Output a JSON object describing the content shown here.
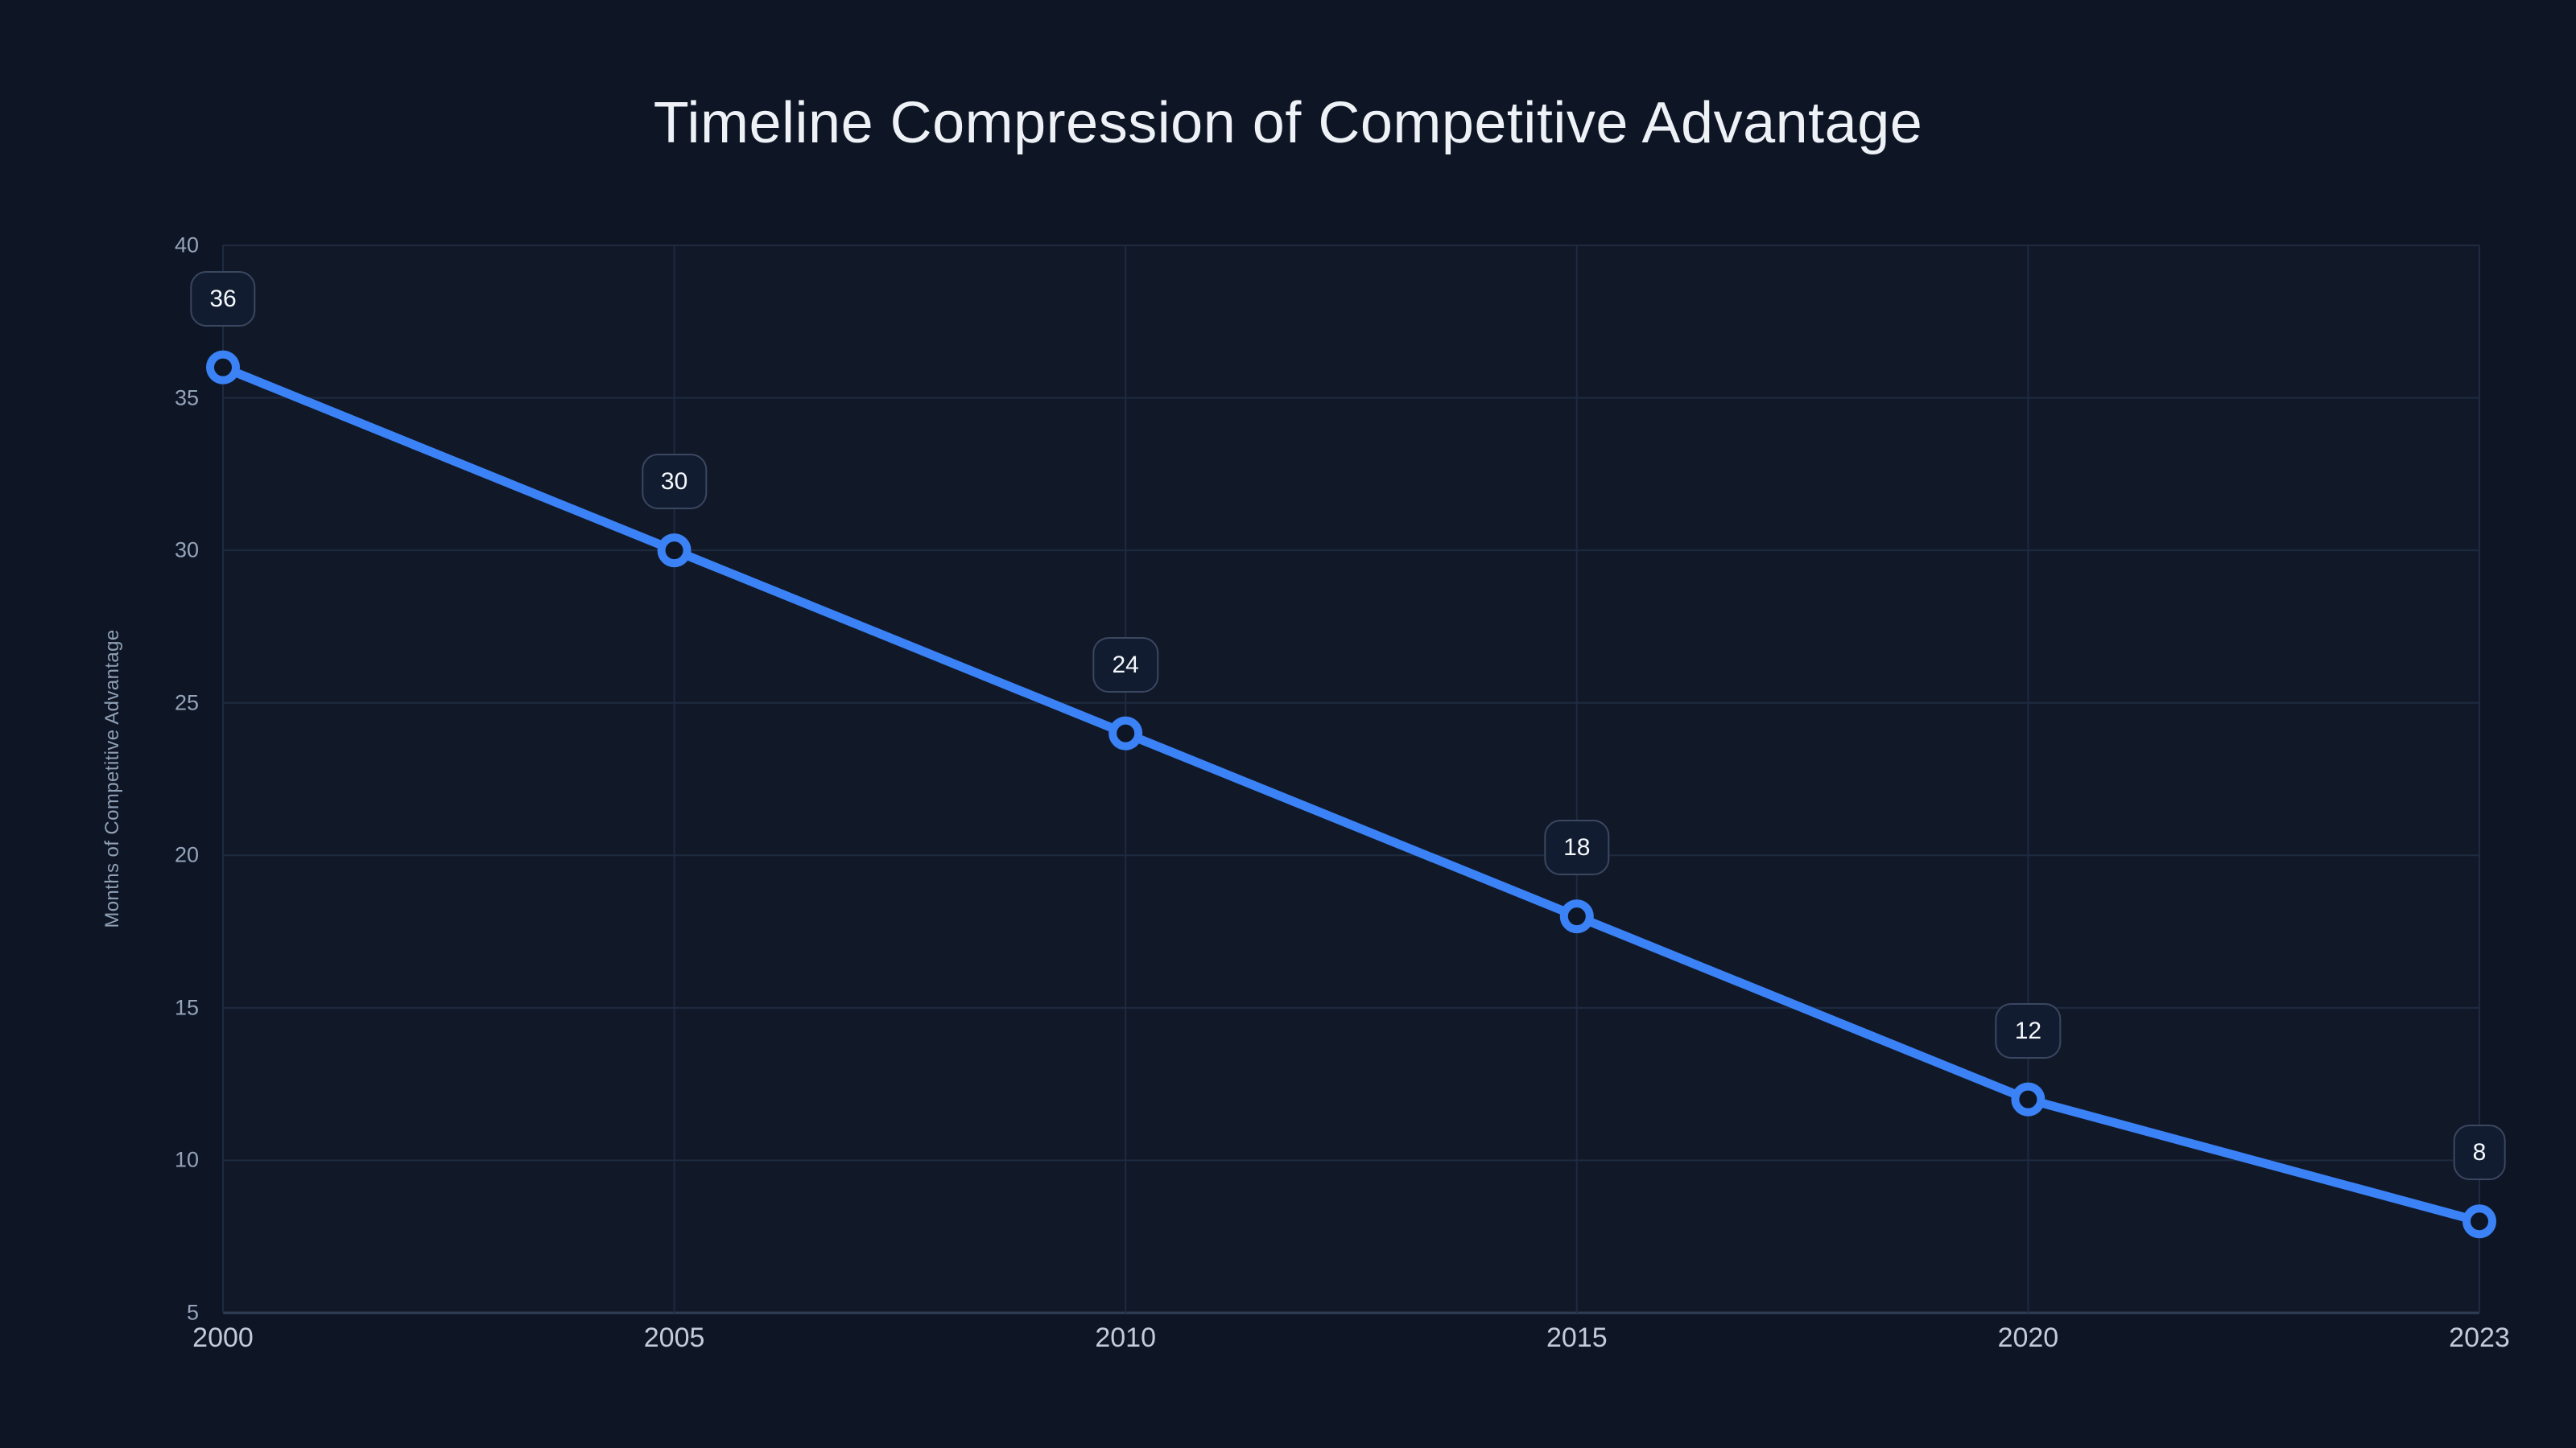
{
  "chart_data": {
    "type": "line",
    "title": "Timeline Compression of Competitive Advantage",
    "categories": [
      "2000",
      "2005",
      "2010",
      "2015",
      "2020",
      "2023"
    ],
    "values": [
      36,
      30,
      24,
      18,
      12,
      8
    ],
    "data_labels": [
      "36",
      "30",
      "24",
      "18",
      "12",
      "8"
    ],
    "xlabel": "",
    "ylabel": "Months of Competitive Advantage",
    "ylim": [
      5,
      40
    ],
    "yticks": [
      5,
      10,
      15,
      20,
      25,
      30,
      35,
      40
    ],
    "grid": true,
    "legend": false,
    "colors": {
      "background": "#0e1626",
      "plot_bg": "rgba(255,255,255,0.015)",
      "line": "#3b82f6",
      "marker_fill": "#0e1626",
      "grid": "#1e2a40",
      "axis_line": "#2f3d55",
      "y_tick_label": "#94a3b8",
      "x_tick_label": "#c2cbd9",
      "title": "#eef2f7",
      "y_axis_title": "#8fa0b5",
      "badge_bg": "#121c30",
      "badge_border": "#3a4760",
      "badge_text": "#f5f8fc"
    }
  }
}
